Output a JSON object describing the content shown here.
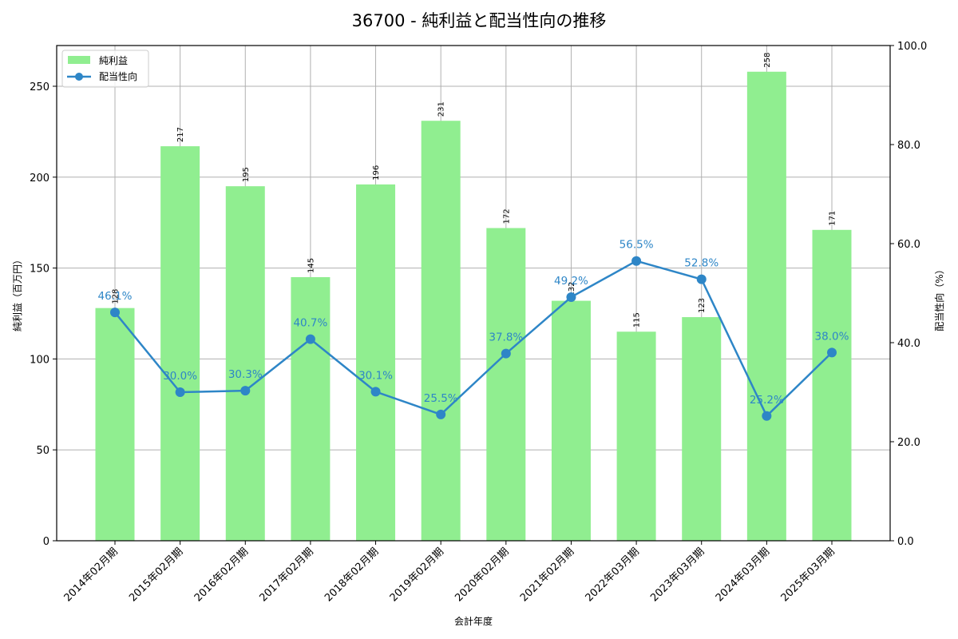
{
  "chart_data": {
    "type": "bar+line",
    "title": "36700 - 純利益と配当性向の推移",
    "xlabel": "会計年度",
    "ylabel_left": "純利益（百万円）",
    "ylabel_right": "配当性向（%）",
    "categories": [
      "2014年02月期",
      "2015年02月期",
      "2016年02月期",
      "2017年02月期",
      "2018年02月期",
      "2019年02月期",
      "2020年02月期",
      "2021年02月期",
      "2022年03月期",
      "2023年03月期",
      "2024年03月期",
      "2025年03月期"
    ],
    "series": [
      {
        "name": "純利益",
        "type": "bar",
        "axis": "left",
        "color": "#90ee90",
        "values": [
          128,
          217,
          195,
          145,
          196,
          231,
          172,
          132,
          115,
          123,
          258,
          171
        ]
      },
      {
        "name": "配当性向",
        "type": "line",
        "axis": "right",
        "color": "#2e86c7",
        "values": [
          46.1,
          30.0,
          30.3,
          40.7,
          30.1,
          25.5,
          37.8,
          49.2,
          56.5,
          52.8,
          25.2,
          38.0
        ]
      }
    ],
    "ylim_left": [
      0,
      272.4
    ],
    "ylim_right": [
      0,
      100
    ],
    "yticks_left": [
      0,
      50,
      100,
      150,
      200,
      250
    ],
    "yticks_right": [
      "0.0",
      "20.0",
      "40.0",
      "60.0",
      "80.0",
      "100.0"
    ],
    "grid": true,
    "legend_position": "upper left"
  }
}
